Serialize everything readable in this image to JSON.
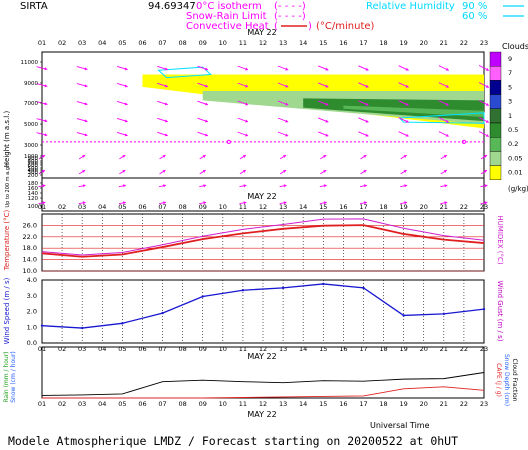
{
  "header": {
    "station": "SIRTA",
    "coords": "94.69347",
    "isotherm_label": "0°C isotherm",
    "snow_rain_label": "Snow-Rain Limit",
    "conv_heat_label": "Convective Heat",
    "conv_heat_unit": "(°C/minute)",
    "rh_label": "Relative Humidity",
    "rh_90": "90 %",
    "rh_60": "60 %"
  },
  "date_label": "MAY 22",
  "footer": {
    "universal_time": "Universal Time",
    "forecast": "Modele Atmospherique LMDZ / Forecast starting on 20200522 at 0hUT"
  },
  "colors": {
    "temp": "#e02020",
    "humidex": "#d020d0",
    "wind": "#1818d0",
    "gust": "#c000c0",
    "rain": "#20a020",
    "snow": "#2060ff",
    "cape": "#e02020",
    "cloud_fraction": "#000000",
    "isotherm": "#ff00ff",
    "rh": "#00e0ff"
  },
  "chart_data": [
    {
      "type": "heatmap",
      "title": "Clouds",
      "ylabel": "Height (m a.s.l.)",
      "ylabel_small": "Up to 200 m a.g.l.",
      "x_hours": [
        "01",
        "02",
        "03",
        "04",
        "05",
        "06",
        "07",
        "08",
        "09",
        "10",
        "11",
        "12",
        "13",
        "14",
        "15",
        "16",
        "17",
        "18",
        "19",
        "20",
        "21",
        "22",
        "23"
      ],
      "y_ticks": [
        11000,
        9000,
        7000,
        5000,
        3000,
        1000,
        900,
        800,
        700,
        600,
        500,
        400,
        300,
        200,
        180,
        160,
        140,
        120,
        100
      ],
      "y_tick_labels": [
        "11000",
        "9000",
        "7000",
        "5000",
        "3000",
        "1000",
        "900",
        "800",
        "700",
        "600",
        "500",
        "400",
        "300",
        "200",
        "180",
        "160",
        "140",
        "120",
        "100"
      ],
      "colorbar": {
        "title": "Clouds",
        "unit": "(g/kg)",
        "labels": [
          "9",
          "7",
          "5",
          "3",
          "1",
          "0.5",
          "0.2",
          "0.05",
          "0.01"
        ],
        "colors": [
          "#c000ff",
          "#ff60ff",
          "#000090",
          "#2a4ad0",
          "#307030",
          "#2e8b2e",
          "#58b858",
          "#a0d890",
          "#ffff00"
        ]
      },
      "isotherm_height_m": 3300,
      "cloud_layers": [
        {
          "level": "0.01",
          "x": [
            6,
            23
          ],
          "base_m": [
            8600,
            4600
          ],
          "top_m": [
            9800,
            9800
          ]
        },
        {
          "level": "0.05",
          "x": [
            9,
            23
          ],
          "base_m": [
            7300,
            5000
          ],
          "top_m": [
            8200,
            8200
          ]
        },
        {
          "level": "0.5",
          "x": [
            14,
            23
          ],
          "base_m": [
            6600,
            5300
          ],
          "top_m": [
            7500,
            7300
          ]
        }
      ]
    },
    {
      "type": "line",
      "ylabel": "Temperature (°C)",
      "ylabel_right": "HUMIDEX (°C)",
      "x_hours": [
        "01",
        "02",
        "03",
        "04",
        "05",
        "06",
        "07",
        "08",
        "09",
        "10",
        "11",
        "12",
        "13",
        "14",
        "15",
        "16",
        "17",
        "18",
        "19",
        "20",
        "21",
        "22",
        "23"
      ],
      "ylim": [
        10,
        30
      ],
      "y_ticks": [
        "10.0",
        "14.0",
        "18.0",
        "22.0",
        "26.0"
      ],
      "series": [
        {
          "name": "Temperature",
          "x": [
            1,
            3,
            5,
            7,
            9,
            11,
            13,
            15,
            17,
            19,
            21,
            23
          ],
          "values": [
            16.2,
            15.0,
            15.8,
            18.4,
            21.2,
            23.2,
            24.8,
            25.9,
            26.1,
            23.0,
            21.0,
            19.8
          ]
        },
        {
          "name": "HUMIDEX",
          "x": [
            1,
            3,
            5,
            7,
            9,
            11,
            13,
            15,
            17,
            19,
            21,
            23
          ],
          "values": [
            16.8,
            15.6,
            16.5,
            19.2,
            22.2,
            24.6,
            26.3,
            28.2,
            28.3,
            25.0,
            22.4,
            20.8
          ]
        }
      ]
    },
    {
      "type": "line",
      "ylabel": "Wind Speed (m / s)",
      "ylabel_right": "Wind Gust (m / s)",
      "x_hours": [
        "01",
        "02",
        "03",
        "04",
        "05",
        "06",
        "07",
        "08",
        "09",
        "10",
        "11",
        "12",
        "13",
        "14",
        "15",
        "16",
        "17",
        "18",
        "19",
        "20",
        "21",
        "22",
        "23"
      ],
      "ylim": [
        0,
        4
      ],
      "y_ticks": [
        "0.0",
        "1.0",
        "2.0",
        "3.0",
        "4.0"
      ],
      "series": [
        {
          "name": "Wind Speed",
          "x": [
            1,
            3,
            5,
            7,
            9,
            11,
            13,
            15,
            17,
            19,
            21,
            23
          ],
          "values": [
            1.1,
            0.95,
            1.25,
            1.9,
            2.95,
            3.35,
            3.5,
            3.75,
            3.5,
            1.75,
            1.85,
            2.15
          ]
        }
      ]
    },
    {
      "type": "line",
      "ylabel": "Rain (mm / hour)",
      "ylabel_snow": "Snow (cm / hour)",
      "ylabel_right": "CAPE (J / g)",
      "ylabel_right2": "Snow Depth (cm)",
      "ylabel_right3": "Cloud Fraction",
      "x_hours": [
        "01",
        "02",
        "03",
        "04",
        "05",
        "06",
        "07",
        "08",
        "09",
        "10",
        "11",
        "12",
        "13",
        "14",
        "15",
        "16",
        "17",
        "18",
        "19",
        "20",
        "21",
        "22",
        "23"
      ],
      "ylim": [
        0,
        1
      ],
      "series": [
        {
          "name": "Cloud Fraction",
          "x": [
            1,
            3,
            5,
            7,
            9,
            11,
            13,
            15,
            17,
            19,
            21,
            23
          ],
          "values": [
            0.05,
            0.06,
            0.08,
            0.32,
            0.35,
            0.32,
            0.3,
            0.34,
            0.33,
            0.37,
            0.38,
            0.5
          ]
        },
        {
          "name": "CAPE",
          "x": [
            1,
            3,
            5,
            7,
            9,
            11,
            13,
            15,
            17,
            19,
            21,
            23
          ],
          "values": [
            0,
            0,
            0,
            0,
            0,
            0.01,
            0.02,
            0.03,
            0.04,
            0.18,
            0.22,
            0.15
          ]
        }
      ]
    }
  ]
}
